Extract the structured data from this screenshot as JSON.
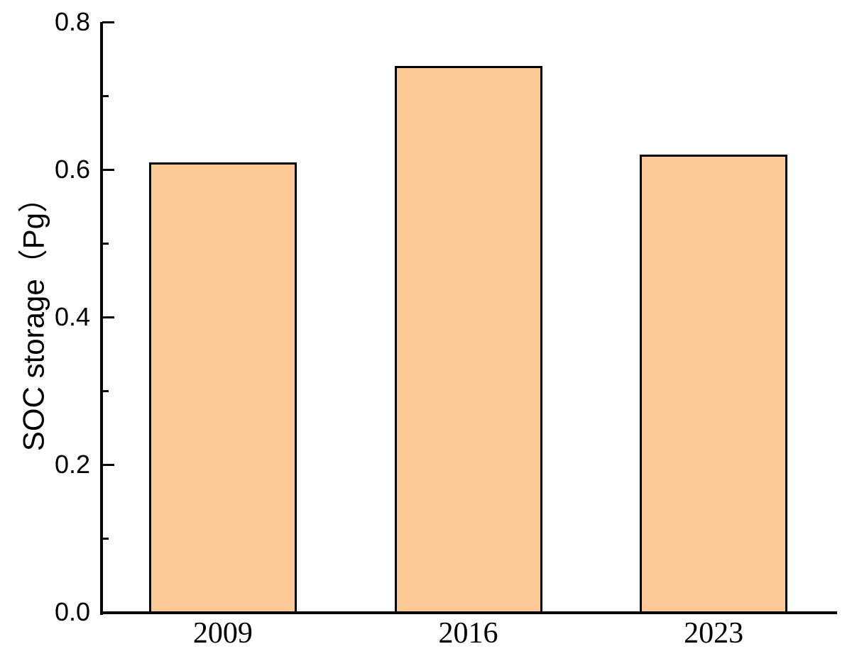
{
  "chart_data": {
    "type": "bar",
    "title": "",
    "categories": [
      "2009",
      "2016",
      "2023"
    ],
    "values": [
      0.61,
      0.74,
      0.62
    ],
    "xlabel": "",
    "ylabel": "SOC storage（Pg）",
    "ylim": [
      0,
      0.8
    ],
    "ytick_values": [
      0,
      0.2,
      0.4,
      0.6,
      0.8
    ],
    "ytick_labels": [
      "0.0",
      "0.2",
      "0.4",
      "0.6",
      "0.8"
    ],
    "minor_ytick_values": [
      0.1,
      0.3,
      0.5,
      0.7
    ],
    "grid": false,
    "legend": false,
    "bar_fill": "#FDC997",
    "bar_stroke": "#000000",
    "axis_color": "#000000",
    "background": "#FFFFFF"
  }
}
